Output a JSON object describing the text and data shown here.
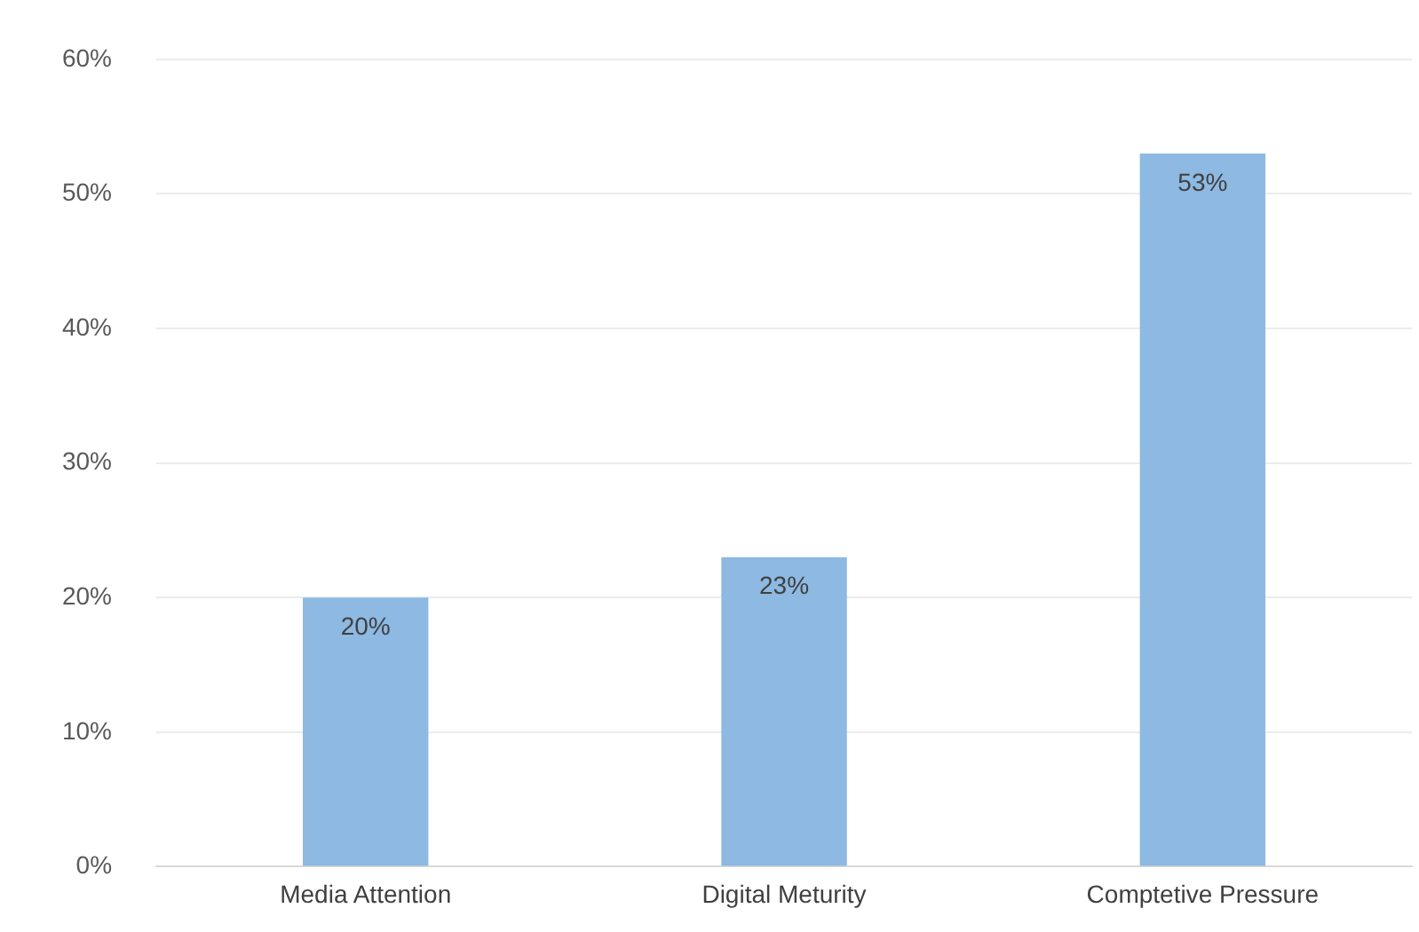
{
  "chart_data": {
    "type": "bar",
    "categories": [
      "Media Attention",
      "Digital Meturity",
      "Comptetive Pressure"
    ],
    "values": [
      20,
      23,
      53
    ],
    "value_labels": [
      "20%",
      "23%",
      "53%"
    ],
    "color": "#8db9e2",
    "ylim": [
      0,
      60
    ],
    "yticks": [
      {
        "value": 0,
        "label": "0%"
      },
      {
        "value": 10,
        "label": "10%"
      },
      {
        "value": 20,
        "label": "20%"
      },
      {
        "value": 30,
        "label": "30%"
      },
      {
        "value": 40,
        "label": "40%"
      },
      {
        "value": 50,
        "label": "50%"
      },
      {
        "value": 60,
        "label": "60%"
      }
    ],
    "grid": "y",
    "legend": false
  }
}
